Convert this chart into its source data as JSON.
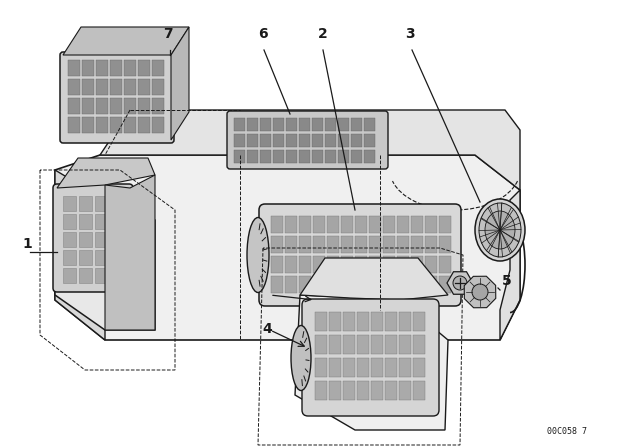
{
  "background_color": "#ffffff",
  "line_color": "#1a1a1a",
  "part_number_text": "00C058 7",
  "figsize": [
    6.4,
    4.48
  ],
  "dpi": 100
}
